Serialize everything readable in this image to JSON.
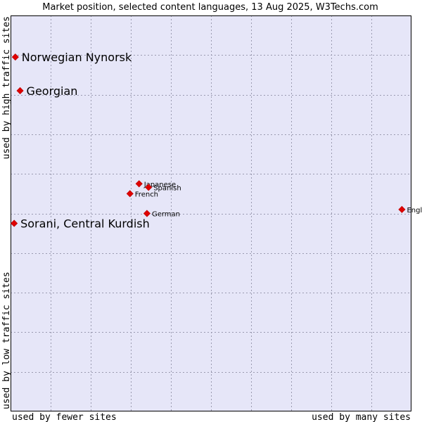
{
  "chart_data": {
    "type": "scatter",
    "title": "Market position, selected content languages, 13 Aug 2025, W3Techs.com",
    "xlabel_left": "used by fewer sites",
    "xlabel_right": "used by many sites",
    "ylabel_bottom": "used by low traffic sites",
    "ylabel_top": "used by high traffic sites",
    "xlim": [
      0,
      100
    ],
    "ylim": [
      0,
      100
    ],
    "grid": true,
    "colors": {
      "plot_background": "#e6e6f8",
      "marker": "#e00000",
      "marker_outline": "#c00000",
      "frame": "#000000"
    },
    "points": [
      {
        "label": "Norwegian Nynorsk",
        "x": 0.5,
        "y": 89.5,
        "size": "large"
      },
      {
        "label": "Georgian",
        "x": 1.7,
        "y": 81.0,
        "size": "large"
      },
      {
        "label": "Sorani, Central Kurdish",
        "x": 0.2,
        "y": 47.5,
        "size": "large"
      },
      {
        "label": "Japanese",
        "x": 31.8,
        "y": 57.5,
        "size": "small"
      },
      {
        "label": "Spanish",
        "x": 34.2,
        "y": 56.6,
        "size": "small"
      },
      {
        "label": "French",
        "x": 29.5,
        "y": 55.0,
        "size": "small"
      },
      {
        "label": "German",
        "x": 33.8,
        "y": 50.0,
        "size": "small"
      },
      {
        "label": "English",
        "x": 98.3,
        "y": 51.0,
        "size": "small"
      }
    ]
  }
}
